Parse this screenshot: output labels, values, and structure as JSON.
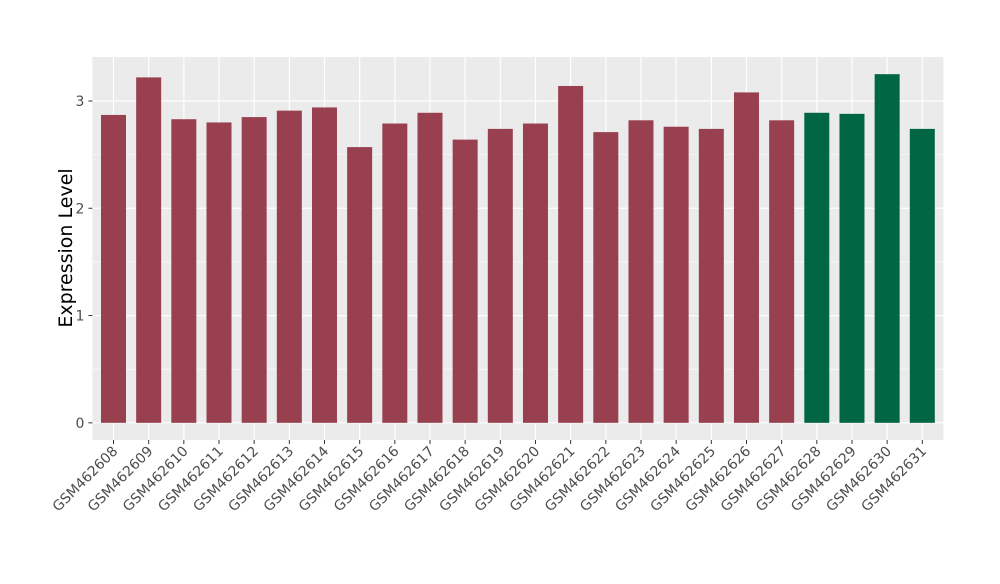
{
  "chart_data": {
    "type": "bar",
    "title": "",
    "xlabel": "",
    "ylabel": "Expression Level",
    "ylim": [
      -0.16,
      3.41
    ],
    "yticks": [
      0,
      1,
      2,
      3
    ],
    "grid": true,
    "categories": [
      "GSM462608",
      "GSM462609",
      "GSM462610",
      "GSM462611",
      "GSM462612",
      "GSM462613",
      "GSM462614",
      "GSM462615",
      "GSM462616",
      "GSM462617",
      "GSM462618",
      "GSM462619",
      "GSM462620",
      "GSM462621",
      "GSM462622",
      "GSM462623",
      "GSM462624",
      "GSM462625",
      "GSM462626",
      "GSM462627",
      "GSM462628",
      "GSM462629",
      "GSM462630",
      "GSM462631"
    ],
    "values": [
      2.87,
      3.22,
      2.83,
      2.8,
      2.85,
      2.91,
      2.94,
      2.57,
      2.79,
      2.89,
      2.64,
      2.74,
      2.79,
      3.14,
      2.71,
      2.82,
      2.76,
      2.74,
      3.08,
      2.82,
      2.89,
      2.88,
      3.25,
      2.74
    ],
    "groups": [
      "a",
      "a",
      "a",
      "a",
      "a",
      "a",
      "a",
      "a",
      "a",
      "a",
      "a",
      "a",
      "a",
      "a",
      "a",
      "a",
      "a",
      "a",
      "a",
      "a",
      "b",
      "b",
      "b",
      "b"
    ],
    "colors": {
      "a": "#994050",
      "b": "#006643"
    },
    "panel_background": "#EBEBEB"
  }
}
